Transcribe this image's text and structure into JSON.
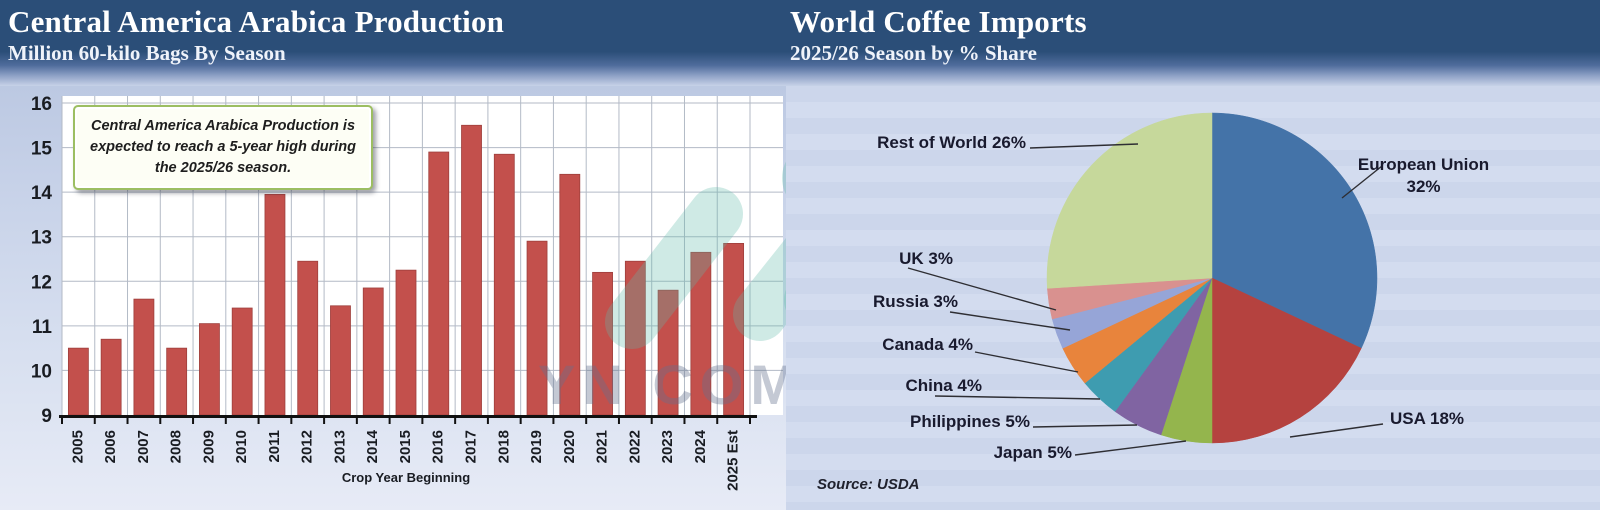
{
  "header": {
    "left": {
      "title": "Central America Arabica Production",
      "subtitle": "Million 60-kilo Bags By Season"
    },
    "right": {
      "title": "World Coffee Imports",
      "subtitle": "2025/26 Season by % Share"
    }
  },
  "annotation": {
    "text": "Central America Arabica Production is expected to reach a 5-year high during the 2025/26 season."
  },
  "watermark": {
    "text": "YN COMMODITIES"
  },
  "source_note": "Source: USDA",
  "chart_data": [
    {
      "type": "bar",
      "title": "Central America Arabica Production",
      "subtitle": "Million 60-kilo Bags By Season",
      "xlabel": "Crop Year Beginning",
      "ylabel": "",
      "ylim": [
        9,
        16
      ],
      "yticks": [
        9,
        10,
        11,
        12,
        13,
        14,
        15,
        16
      ],
      "grid": true,
      "bar_color": "#C3504C",
      "categories": [
        "2005",
        "2006",
        "2007",
        "2008",
        "2009",
        "2010",
        "2011",
        "2012",
        "2013",
        "2014",
        "2015",
        "2016",
        "2017",
        "2018",
        "2019",
        "2020",
        "2021",
        "2022",
        "2023",
        "2024",
        "2025 Est"
      ],
      "values": [
        10.5,
        10.7,
        11.6,
        10.5,
        11.05,
        11.4,
        13.95,
        12.45,
        11.45,
        11.85,
        12.25,
        14.9,
        15.5,
        14.85,
        12.9,
        14.4,
        12.2,
        12.45,
        11.8,
        12.65,
        12.85
      ]
    },
    {
      "type": "pie",
      "title": "World Coffee Imports",
      "subtitle": "2025/26 Season by % Share",
      "start_angle_deg": 0,
      "direction": "clockwise",
      "legend_position": "callout-labels",
      "slices": [
        {
          "label": "European Union",
          "value": 32,
          "color": "#4473A8"
        },
        {
          "label": "USA",
          "value": 18,
          "color": "#B5423F"
        },
        {
          "label": "Japan",
          "value": 5,
          "color": "#94B54D"
        },
        {
          "label": "Philippines",
          "value": 5,
          "color": "#8064A2"
        },
        {
          "label": "China",
          "value": 4,
          "color": "#3E9CB0"
        },
        {
          "label": "Canada",
          "value": 4,
          "color": "#E8843C"
        },
        {
          "label": "Russia",
          "value": 3,
          "color": "#96A5D7"
        },
        {
          "label": "UK",
          "value": 3,
          "color": "#D9918F"
        },
        {
          "label": "Rest of World",
          "value": 26,
          "color": "#C6D89B"
        }
      ],
      "source": "USDA"
    }
  ],
  "colors": {
    "header_navy": "#2B4E78",
    "panel_bg": "#CCD6EB",
    "plot_bg": "#FFFFFF",
    "gridline": "#B3BAC6",
    "bar": "#C3504C",
    "annotation_border": "#9CBE62",
    "annotation_bg": "#FDFEF5",
    "watermark_teal": "#5FB8AA",
    "watermark_gray": "#64708E"
  }
}
